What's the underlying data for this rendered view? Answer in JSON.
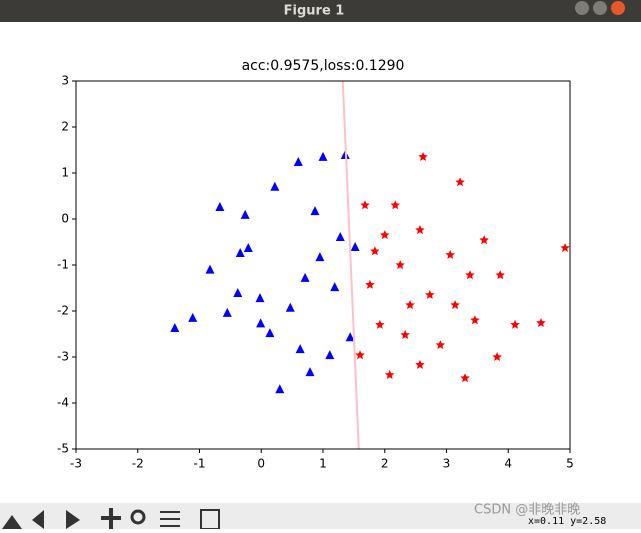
{
  "window": {
    "title": "Figure 1"
  },
  "chart_data": {
    "type": "scatter",
    "title": "acc:0.9575,loss:0.1290",
    "xlim": [
      -3,
      5
    ],
    "ylim": [
      -5,
      3
    ],
    "xticks": [
      -3,
      -2,
      -1,
      0,
      1,
      2,
      3,
      4,
      5
    ],
    "yticks": [
      -5,
      -4,
      -3,
      -2,
      -1,
      0,
      1,
      2,
      3
    ],
    "series": [
      {
        "marker": "triangle",
        "color": "#0000ff",
        "x": [
          -1.4,
          -1.11,
          -0.83,
          -0.67,
          -0.26,
          -0.55,
          -0.34,
          -0.02,
          0.22,
          0.6,
          1.0,
          1.36,
          0.3,
          0.63,
          0.79,
          0.14,
          0.47,
          0.71,
          0.95,
          1.19,
          1.44,
          1.28,
          0.87,
          -0.21,
          -0.01,
          -0.38,
          1.11,
          1.52
        ],
        "y": [
          -2.37,
          -2.15,
          -1.1,
          0.26,
          0.09,
          -2.04,
          -0.74,
          -1.72,
          0.7,
          1.24,
          1.35,
          1.39,
          -3.7,
          -2.83,
          -3.33,
          -2.48,
          -1.93,
          -1.28,
          -0.83,
          -1.48,
          -2.57,
          -0.39,
          0.17,
          -0.63,
          -2.27,
          -1.61,
          -2.96,
          -0.61
        ]
      },
      {
        "marker": "star",
        "color": "#ff0000",
        "x": [
          4.92,
          4.53,
          4.11,
          3.82,
          3.22,
          2.62,
          3.61,
          3.38,
          3.3,
          2.9,
          2.41,
          2.25,
          2.0,
          1.76,
          1.92,
          2.08,
          1.6,
          1.68,
          2.17,
          2.57,
          3.06,
          2.73,
          3.87,
          3.14,
          1.84,
          2.33,
          2.57,
          3.46
        ],
        "y": [
          -0.63,
          -2.26,
          -2.3,
          -3.0,
          0.8,
          1.35,
          -0.46,
          -1.22,
          -3.46,
          -2.74,
          -1.87,
          -1.0,
          -0.35,
          -1.43,
          -2.3,
          -3.39,
          -2.96,
          0.3,
          0.3,
          -0.24,
          -0.78,
          -1.65,
          -1.22,
          -1.87,
          -0.7,
          -2.52,
          -3.17,
          -2.2
        ]
      },
      {
        "marker": "line",
        "color": "#ffc0cb",
        "x": [
          1.32,
          1.58
        ],
        "y": [
          3,
          -5
        ]
      }
    ]
  },
  "status": {
    "coords": "x=0.11 y=2.58",
    "watermark": "CSDN @非晚非晚"
  }
}
